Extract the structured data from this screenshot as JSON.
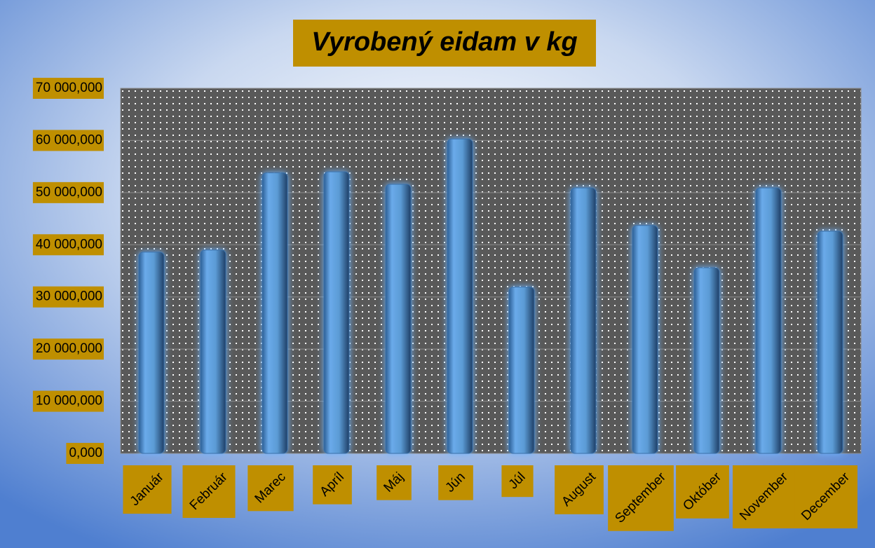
{
  "chart_data": {
    "type": "bar",
    "title": "Vyrobený eidam v kg",
    "categories": [
      "Január",
      "Február",
      "Marec",
      "Apríl",
      "Máj",
      "Jún",
      "Júl",
      "August",
      "September",
      "Október",
      "November",
      "December"
    ],
    "values": [
      38600000,
      39000000,
      53800000,
      54000000,
      51600000,
      60300000,
      31900000,
      50900000,
      43700000,
      35600000,
      50900000,
      42600000
    ],
    "color": "#5b9bd5",
    "ylim": [
      0,
      70000000
    ],
    "yticks": [
      {
        "value": 0,
        "label": "0,000"
      },
      {
        "value": 10000000,
        "label": "10 000,000"
      },
      {
        "value": 20000000,
        "label": "20 000,000"
      },
      {
        "value": 30000000,
        "label": "30 000,000"
      },
      {
        "value": 40000000,
        "label": "40 000,000"
      },
      {
        "value": 50000000,
        "label": "50 000,000"
      },
      {
        "value": 60000000,
        "label": "60 000,000"
      },
      {
        "value": 70000000,
        "label": "70 000,000"
      }
    ],
    "grid": true
  }
}
